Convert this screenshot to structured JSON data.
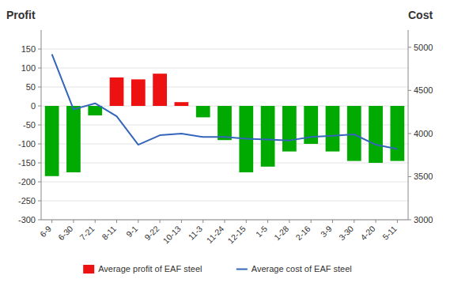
{
  "chart_data": {
    "type": "bar",
    "ylabel": "Profit",
    "y2label": "Cost",
    "categories": [
      "6-9",
      "6-30",
      "7-21",
      "8-11",
      "9-1",
      "9-22",
      "10-13",
      "11-3",
      "11-24",
      "12-15",
      "1-5",
      "1-28",
      "2-16",
      "3-9",
      "3-30",
      "4-20",
      "5-11"
    ],
    "series": [
      {
        "name": "Average profit of EAF steel",
        "type": "bar",
        "color": "#ee1111",
        "colors": [
          "#00aa00",
          "#00aa00",
          "#00aa00",
          "#ee1111",
          "#ee1111",
          "#ee1111",
          "#ee1111",
          "#00aa00",
          "#00aa00",
          "#00aa00",
          "#00aa00",
          "#00aa00",
          "#00aa00",
          "#00aa00",
          "#00aa00",
          "#00aa00",
          "#00aa00"
        ],
        "values": [
          -185,
          -175,
          -25,
          75,
          70,
          85,
          10,
          -30,
          -90,
          -175,
          -160,
          -120,
          -100,
          -120,
          -145,
          -150,
          -145
        ]
      },
      {
        "name": "Average cost of EAF steel",
        "type": "line",
        "color": "#3366bb",
        "axis": "y2",
        "values": [
          4920,
          4280,
          4350,
          4200,
          3870,
          3980,
          4000,
          3960,
          3960,
          3940,
          3930,
          3920,
          3960,
          3975,
          3990,
          3870,
          3820
        ]
      }
    ],
    "ylim": [
      -300,
      200
    ],
    "yticks": [
      -300,
      -250,
      -200,
      -150,
      -100,
      -50,
      0,
      50,
      100,
      150
    ],
    "y2lim": [
      3000,
      5200
    ],
    "y2ticks": [
      3000,
      3500,
      4000,
      4500,
      5000
    ],
    "grid": true,
    "legend": "bottom"
  }
}
